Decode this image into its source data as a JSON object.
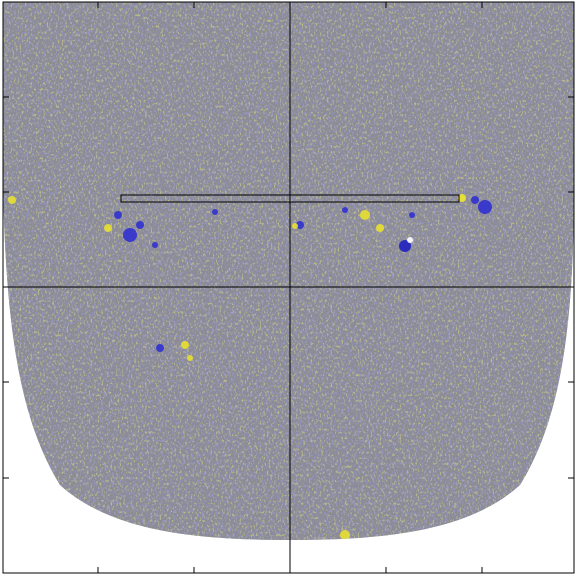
{
  "chart_data": {
    "type": "map"
  }
}
